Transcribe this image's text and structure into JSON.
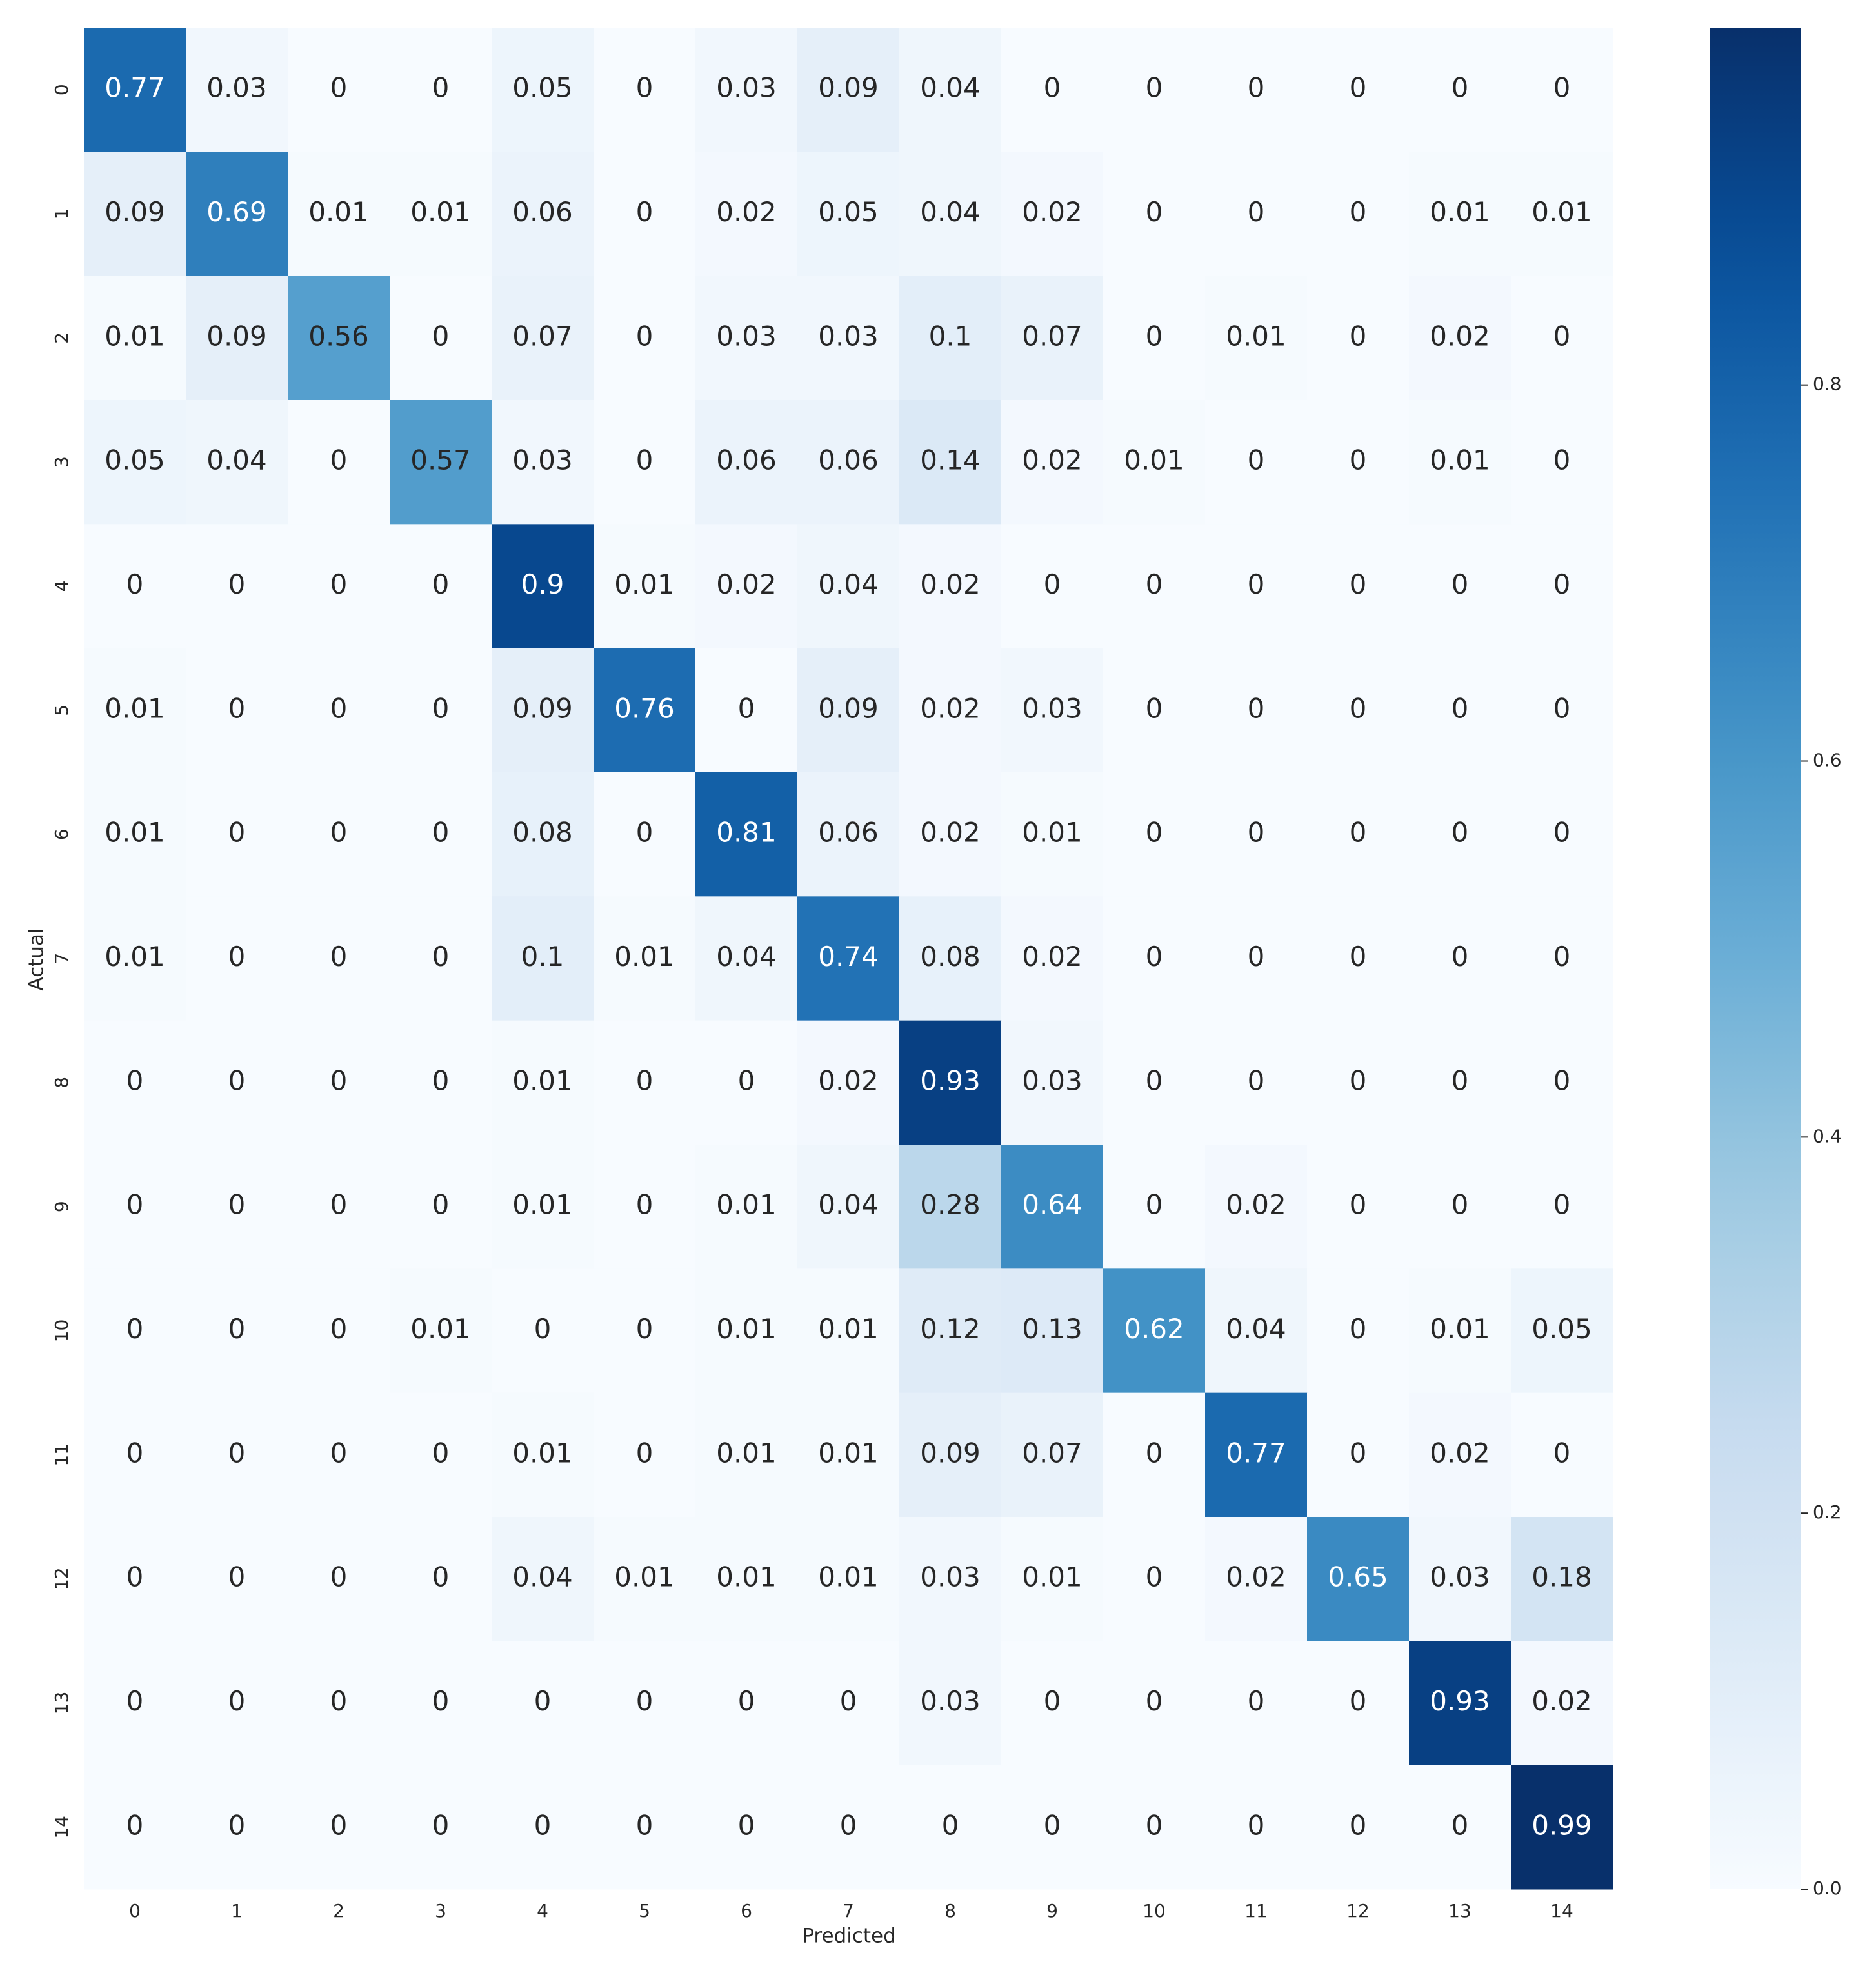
{
  "chart_data": {
    "type": "heatmap",
    "x_label": "Predicted",
    "y_label": "Actual",
    "x_categories": [
      "0",
      "1",
      "2",
      "3",
      "4",
      "5",
      "6",
      "7",
      "8",
      "9",
      "10",
      "11",
      "12",
      "13",
      "14"
    ],
    "y_categories": [
      "0",
      "1",
      "2",
      "3",
      "4",
      "5",
      "6",
      "7",
      "8",
      "9",
      "10",
      "11",
      "12",
      "13",
      "14"
    ],
    "values": [
      [
        0.77,
        0.03,
        0,
        0,
        0.05,
        0,
        0.03,
        0.09,
        0.04,
        0,
        0,
        0,
        0,
        0,
        0
      ],
      [
        0.09,
        0.69,
        0.01,
        0.01,
        0.06,
        0,
        0.02,
        0.05,
        0.04,
        0.02,
        0,
        0,
        0,
        0.01,
        0.01
      ],
      [
        0.01,
        0.09,
        0.56,
        0,
        0.07,
        0,
        0.03,
        0.03,
        0.1,
        0.07,
        0,
        0.01,
        0,
        0.02,
        0
      ],
      [
        0.05,
        0.04,
        0,
        0.57,
        0.03,
        0,
        0.06,
        0.06,
        0.14,
        0.02,
        0.01,
        0,
        0,
        0.01,
        0
      ],
      [
        0,
        0,
        0,
        0,
        0.9,
        0.01,
        0.02,
        0.04,
        0.02,
        0,
        0,
        0,
        0,
        0,
        0
      ],
      [
        0.01,
        0,
        0,
        0,
        0.09,
        0.76,
        0,
        0.09,
        0.02,
        0.03,
        0,
        0,
        0,
        0,
        0
      ],
      [
        0.01,
        0,
        0,
        0,
        0.08,
        0,
        0.81,
        0.06,
        0.02,
        0.01,
        0,
        0,
        0,
        0,
        0
      ],
      [
        0.01,
        0,
        0,
        0,
        0.1,
        0.01,
        0.04,
        0.74,
        0.08,
        0.02,
        0,
        0,
        0,
        0,
        0
      ],
      [
        0,
        0,
        0,
        0,
        0.01,
        0,
        0,
        0.02,
        0.93,
        0.03,
        0,
        0,
        0,
        0,
        0
      ],
      [
        0,
        0,
        0,
        0,
        0.01,
        0,
        0.01,
        0.04,
        0.28,
        0.64,
        0,
        0.02,
        0,
        0,
        0
      ],
      [
        0,
        0,
        0,
        0.01,
        0,
        0,
        0.01,
        0.01,
        0.12,
        0.13,
        0.62,
        0.04,
        0,
        0.01,
        0.05
      ],
      [
        0,
        0,
        0,
        0,
        0.01,
        0,
        0.01,
        0.01,
        0.09,
        0.07,
        0,
        0.77,
        0,
        0.02,
        0
      ],
      [
        0,
        0,
        0,
        0,
        0.04,
        0.01,
        0.01,
        0.01,
        0.03,
        0.01,
        0,
        0.02,
        0.65,
        0.03,
        0.18
      ],
      [
        0,
        0,
        0,
        0,
        0,
        0,
        0,
        0,
        0.03,
        0,
        0,
        0,
        0,
        0.93,
        0.02
      ],
      [
        0,
        0,
        0,
        0,
        0,
        0,
        0,
        0,
        0,
        0,
        0,
        0,
        0,
        0,
        0.99
      ]
    ],
    "colormap": "Blues",
    "clim": [
      0,
      0.99
    ],
    "cticks": [
      {
        "value": 0,
        "label": "0.0"
      },
      0.2,
      0.4,
      0.6,
      0.8
    ]
  }
}
